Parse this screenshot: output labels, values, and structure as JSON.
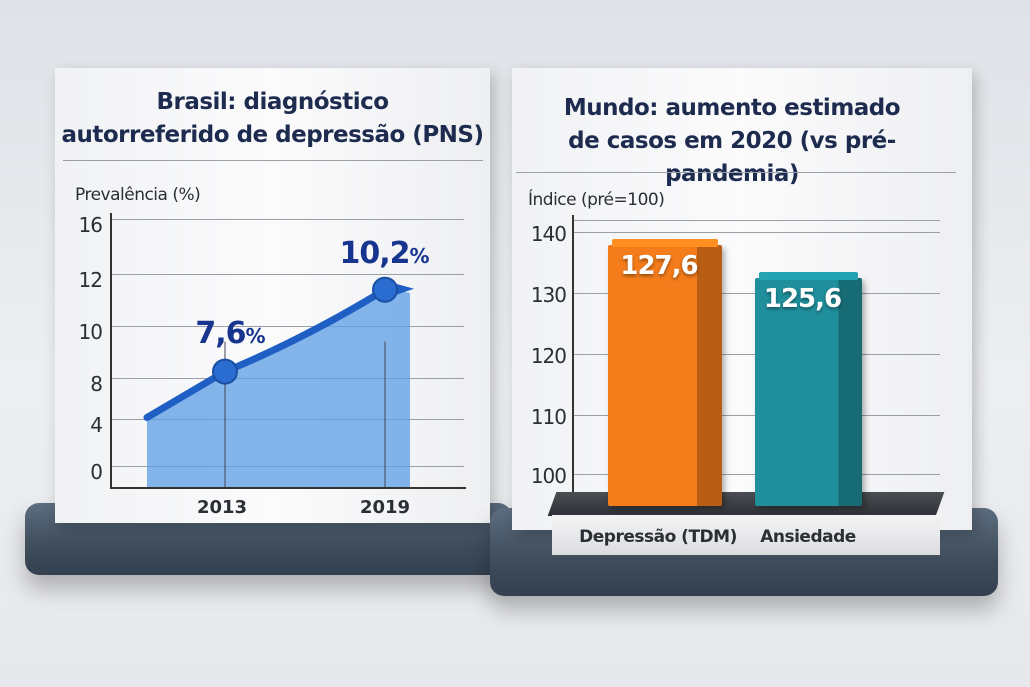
{
  "chart_data": [
    {
      "type": "area",
      "title": "Brasil: diagnóstico autorreferido de depressão (PNS)",
      "title_lines": [
        "Brasil: diagnóstico",
        "autorreferido de depressão (PNS)"
      ],
      "ylabel": "Prevalência (%)",
      "yticks": [
        "16",
        "12",
        "10",
        "8",
        "4",
        "0"
      ],
      "categories": [
        "2013",
        "2019"
      ],
      "values": [
        7.6,
        10.2
      ],
      "data_labels": [
        {
          "num": "7,6",
          "unit": "%"
        },
        {
          "num": "10,2",
          "unit": "%"
        }
      ],
      "grid": true,
      "color": "#2f6fd0"
    },
    {
      "type": "bar",
      "title": "Mundo: aumento estimado de casos em 2020 (vs pré-pandemia)",
      "title_lines": [
        "Mundo: aumento estimado",
        "de casos em 2020 (vs pré-pandemia)"
      ],
      "ylabel": "Índice (pré=100)",
      "yticks": [
        "140",
        "130",
        "120",
        "110",
        "100"
      ],
      "ylim": [
        100,
        140
      ],
      "categories": [
        "Depressão (TDM)",
        "Ansiedade"
      ],
      "values": [
        127.6,
        125.6
      ],
      "data_labels": [
        "127,6",
        "125,6"
      ],
      "colors": [
        "#f47c1a",
        "#1f8f9c"
      ],
      "grid": true
    }
  ]
}
